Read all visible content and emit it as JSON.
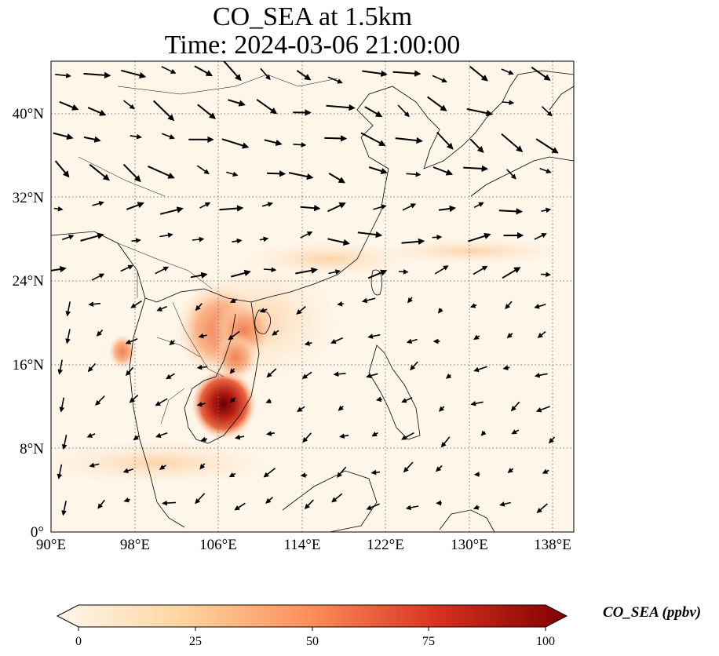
{
  "title_line1": "CO_SEA at 1.5km",
  "title_line2": "Time: 2024-03-06 21:00:00",
  "lon_ticks": [
    "90°E",
    "98°E",
    "106°E",
    "114°E",
    "122°E",
    "130°E",
    "138°E"
  ],
  "lat_ticks": [
    "0°",
    "8°N",
    "16°N",
    "24°N",
    "32°N",
    "40°N"
  ],
  "colorbar": {
    "label": "CO_SEA (ppbv)",
    "ticks": [
      "0",
      "25",
      "50",
      "75",
      "100"
    ],
    "colormap": "OrRd",
    "min": 0,
    "max": 100,
    "extend": "both"
  },
  "map": {
    "projection": "PlateCarree",
    "lon_range": [
      90,
      140
    ],
    "lat_range": [
      0,
      45
    ],
    "gridlines": "dotted",
    "features": [
      "coastlines",
      "borders",
      "wind-vectors",
      "CO-concentration-field"
    ]
  }
}
